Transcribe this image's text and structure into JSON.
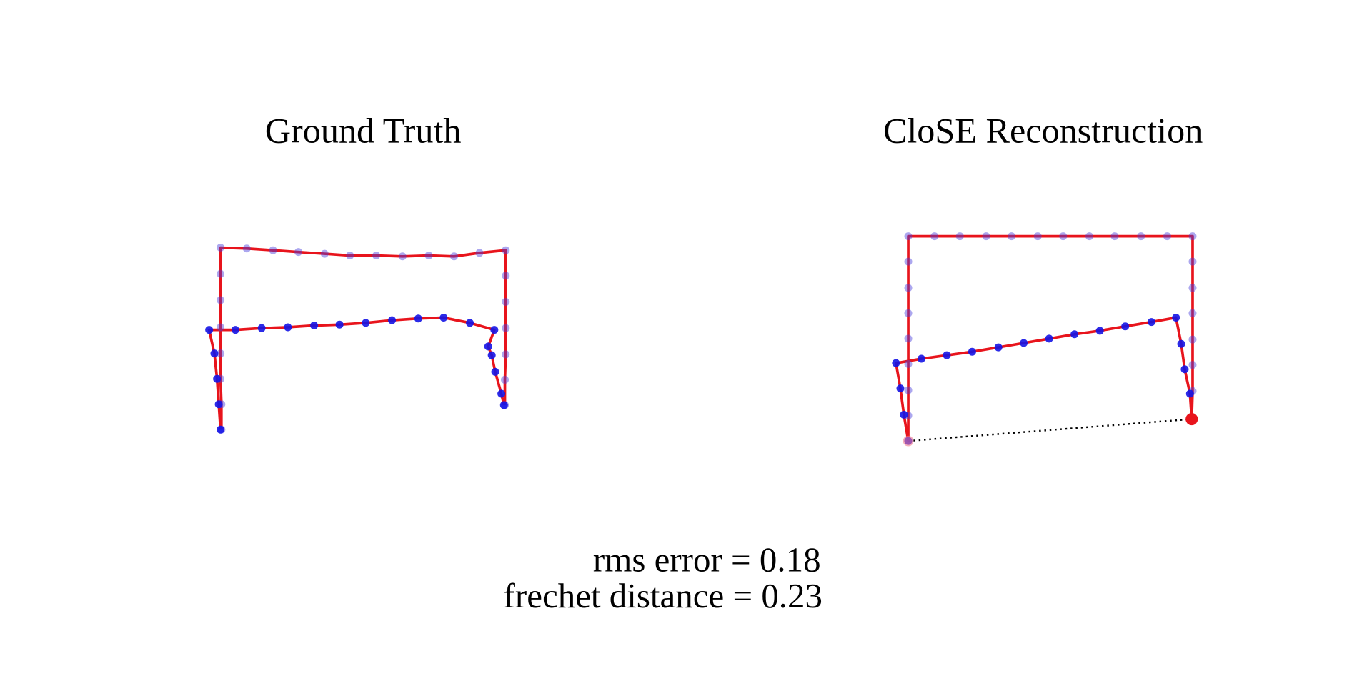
{
  "panels": [
    {
      "title": "Ground Truth"
    },
    {
      "title": "CloSE Reconstruction"
    }
  ],
  "metrics": {
    "rms": "rms error = 0.18",
    "frechet": "frechet distance = 0.23"
  }
}
